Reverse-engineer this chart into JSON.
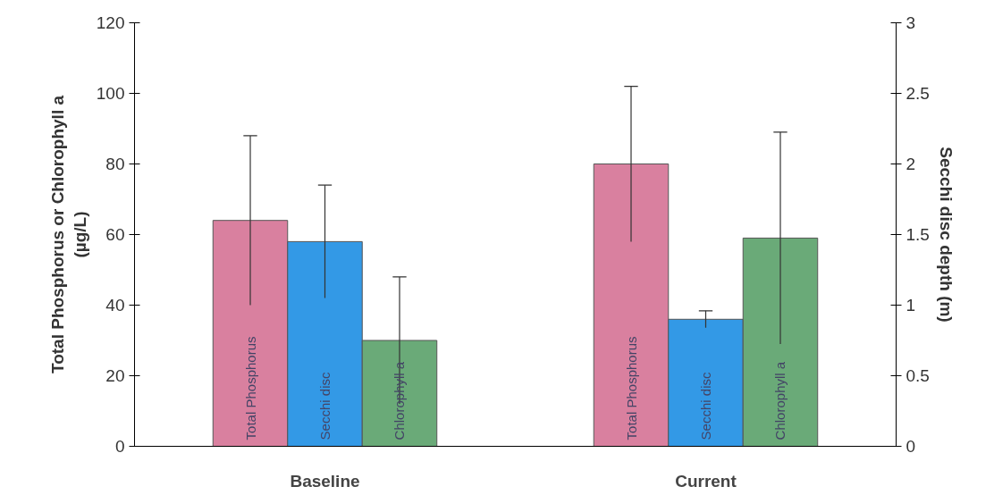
{
  "chart_data": {
    "type": "bar",
    "categories": [
      "Baseline",
      "Current"
    ],
    "ylabel": "Total Phosphorus or Chlorophyll a\n(µg/L)",
    "y2label": "Secchi disc depth (m)",
    "ylim": [
      0,
      120
    ],
    "yticks": [
      0,
      20,
      40,
      60,
      80,
      100,
      120
    ],
    "y2lim": [
      0,
      3
    ],
    "y2ticks": [
      0,
      0.5,
      1,
      1.5,
      2,
      2.5,
      3
    ],
    "grid": false,
    "legend": false,
    "series": [
      {
        "name": "Total Phosphorus",
        "color": "#d9809f",
        "values": [
          64,
          80
        ],
        "errors": [
          24,
          22
        ]
      },
      {
        "name": "Secchi disc",
        "color": "#3399e6",
        "values": [
          1.45,
          0.9
        ],
        "errors": [
          0.4,
          0.06
        ],
        "axis": "y2"
      },
      {
        "name": "Chlorophyll a",
        "color": "#6aaa78",
        "values": [
          30,
          59
        ],
        "errors": [
          18,
          30
        ]
      }
    ]
  }
}
